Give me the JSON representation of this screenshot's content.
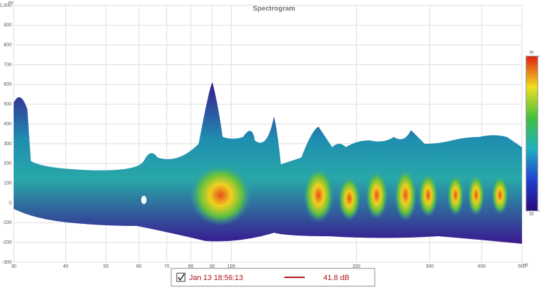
{
  "chart_data": {
    "type": "spectrogram",
    "title": "Spectrogram",
    "y_unit": "ms",
    "x_unit": "Hz",
    "xscale": "log",
    "xlim": [
      30,
      500
    ],
    "ylim": [
      -300,
      1000
    ],
    "yticks": [
      -300,
      -200,
      -100,
      0,
      100,
      200,
      300,
      400,
      500,
      600,
      700,
      800,
      900,
      {
        "value": 1000,
        "label": "1,000"
      }
    ],
    "xticks": [
      30,
      40,
      50,
      60,
      70,
      80,
      90,
      100,
      200,
      300,
      400,
      500
    ],
    "grid": true,
    "colorbar": {
      "lim": [
        55,
        95
      ],
      "ticks": [
        55,
        95
      ]
    },
    "legend": {
      "checked": true,
      "name": "Jan 13 18:56:13",
      "color": "#b01010",
      "value_label": "41.8 dB"
    }
  }
}
